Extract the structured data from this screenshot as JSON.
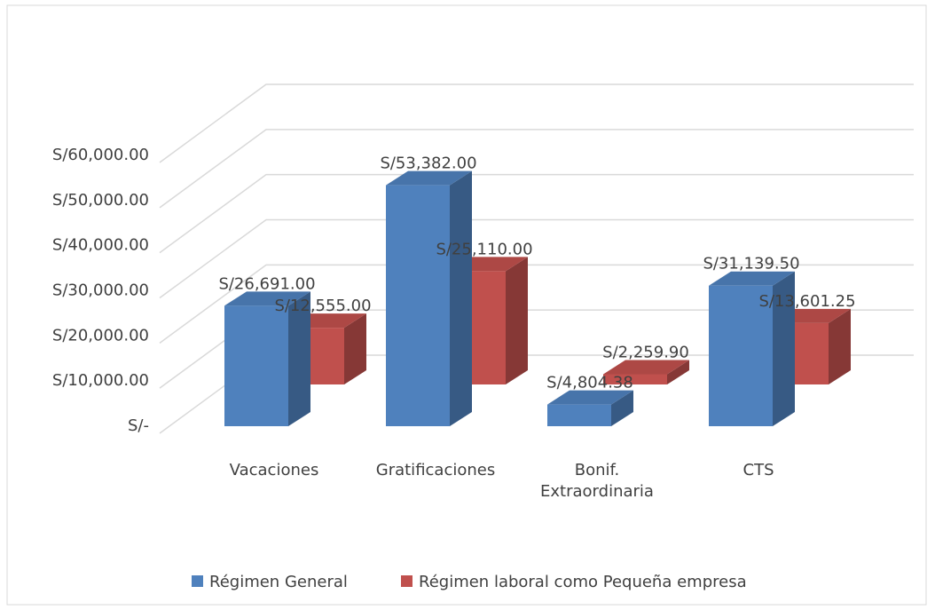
{
  "chart_data": {
    "type": "bar3d",
    "categories": [
      "Vacaciones",
      "Gratificaciones",
      "Bonif. Extraordinaria",
      "CTS"
    ],
    "series": [
      {
        "name": "Régimen General",
        "color": "#4f81bd",
        "values": [
          26691,
          53382,
          4804.38,
          31139.5
        ],
        "value_labels": [
          "S/26,691.00",
          "S/53,382.00",
          "S/4,804.38",
          "S/31,139.50"
        ]
      },
      {
        "name": "Régimen laboral como Pequeña empresa",
        "color": "#c0504d",
        "values": [
          12555,
          25110,
          2259.9,
          13601.25
        ],
        "value_labels": [
          "S/12,555.00",
          "S/25,110.00",
          "S/2,259.90",
          "S/13,601.25"
        ]
      }
    ],
    "ylim": [
      0,
      60000
    ],
    "yticks": [
      {
        "value": 0,
        "label": "S/-"
      },
      {
        "value": 10000,
        "label": "S/10,000.00"
      },
      {
        "value": 20000,
        "label": "S/20,000.00"
      },
      {
        "value": 30000,
        "label": "S/30,000.00"
      },
      {
        "value": 40000,
        "label": "S/40,000.00"
      },
      {
        "value": 50000,
        "label": "S/50,000.00"
      },
      {
        "value": 60000,
        "label": "S/60,000.00"
      }
    ],
    "grid": true,
    "legend": "bottom"
  }
}
